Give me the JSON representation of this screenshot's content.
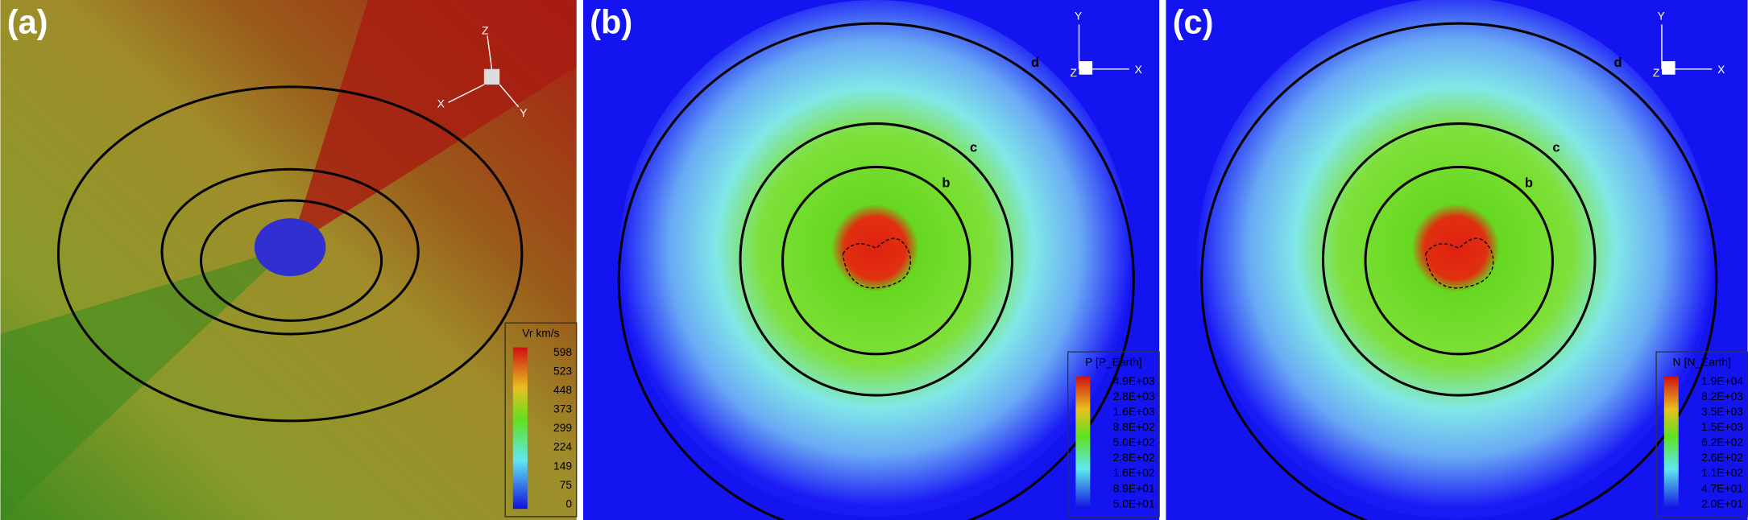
{
  "panels": [
    {
      "label": "(a)",
      "colorbar": {
        "title": "Vr km/s",
        "ticks": [
          "598",
          "523",
          "448",
          "373",
          "299",
          "224",
          "149",
          "75",
          "0"
        ]
      },
      "axes": [
        "Z",
        "X",
        "Y"
      ]
    },
    {
      "label": "(b)",
      "colorbar": {
        "title": "P [P_Earth]",
        "ticks": [
          "4.9E+03",
          "2.8E+03",
          "1.6E+03",
          "8.8E+02",
          "5.0E+02",
          "2.8E+02",
          "1.6E+02",
          "8.9E+01",
          "5.0E+01"
        ]
      },
      "rings": [
        "b",
        "c",
        "d"
      ],
      "axes": [
        "Y",
        "X",
        "Z"
      ]
    },
    {
      "label": "(c)",
      "colorbar": {
        "title": "N [N_Earth]",
        "ticks": [
          "1.9E+04",
          "8.2E+03",
          "3.5E+03",
          "1.5E+03",
          "6.2E+02",
          "2.6E+02",
          "1.1E+02",
          "4.7E+01",
          "2.0E+01"
        ]
      },
      "rings": [
        "b",
        "c",
        "d"
      ],
      "axes": [
        "Y",
        "X",
        "Z"
      ]
    }
  ]
}
